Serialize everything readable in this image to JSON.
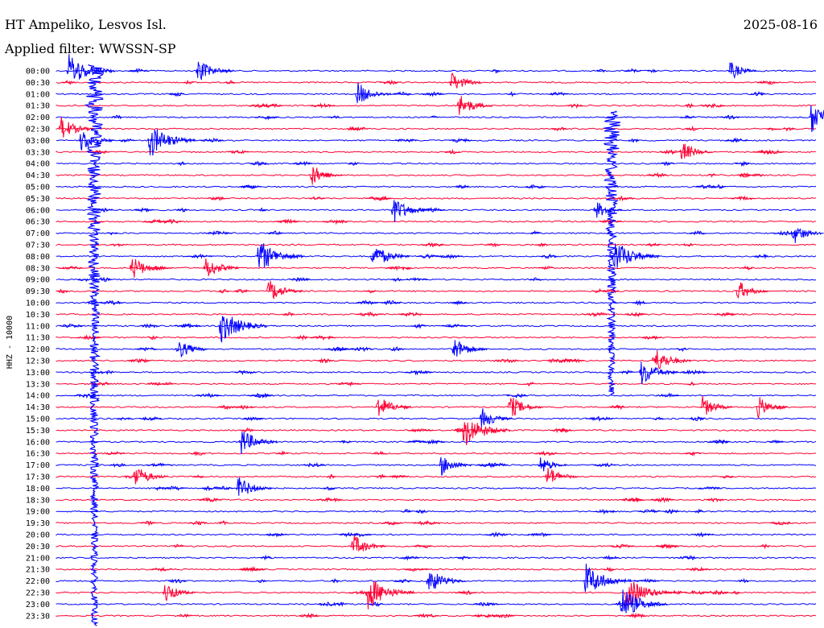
{
  "header": {
    "station": "HT Ampeliko, Lesvos Isl.",
    "filter": "Applied filter: WWSSN-SP",
    "date": "2025-08-16"
  },
  "chart_data": {
    "type": "line",
    "ylabel": "HHZ - 10000",
    "rows": [
      "00:00",
      "00:30",
      "01:00",
      "01:30",
      "02:00",
      "02:30",
      "03:00",
      "03:30",
      "04:00",
      "04:30",
      "05:00",
      "05:30",
      "06:00",
      "06:30",
      "07:00",
      "07:30",
      "08:00",
      "08:30",
      "09:00",
      "09:30",
      "10:00",
      "10:30",
      "11:00",
      "11:30",
      "12:00",
      "12:30",
      "13:00",
      "13:30",
      "14:00",
      "14:30",
      "15:00",
      "15:30",
      "16:00",
      "16:30",
      "17:00",
      "17:30",
      "18:00",
      "18:30",
      "19:00",
      "19:30",
      "20:00",
      "20:30",
      "21:00",
      "21:30",
      "22:00",
      "22:30",
      "23:00",
      "23:30"
    ],
    "row_duration_minutes": 30,
    "series_colors": [
      "#0000ff",
      "#ff0033"
    ],
    "events": [
      {
        "row": "00:00",
        "minute": 0.4,
        "amplitude": 1.0
      },
      {
        "row": "00:00",
        "minute": 5.5,
        "amplitude": 0.6
      },
      {
        "row": "00:00",
        "minute": 26.5,
        "amplitude": 0.4
      },
      {
        "row": "00:30",
        "minute": 15.5,
        "amplitude": 0.5
      },
      {
        "row": "01:00",
        "minute": 11.8,
        "amplitude": 0.6
      },
      {
        "row": "01:30",
        "minute": 15.8,
        "amplitude": 0.6
      },
      {
        "row": "02:00",
        "minute": 29.7,
        "amplitude": 1.0
      },
      {
        "row": "02:30",
        "minute": 0.1,
        "amplitude": 0.6
      },
      {
        "row": "03:00",
        "minute": 0.9,
        "amplitude": 0.6
      },
      {
        "row": "03:00",
        "minute": 3.6,
        "amplitude": 1.0
      },
      {
        "row": "03:30",
        "minute": 24.6,
        "amplitude": 0.5
      },
      {
        "row": "04:30",
        "minute": 10.0,
        "amplitude": 0.5
      },
      {
        "row": "06:00",
        "minute": 13.2,
        "amplitude": 0.7
      },
      {
        "row": "06:00",
        "minute": 21.2,
        "amplitude": 0.4
      },
      {
        "row": "07:00",
        "minute": 29.0,
        "amplitude": 0.5
      },
      {
        "row": "08:00",
        "minute": 7.9,
        "amplitude": 1.0
      },
      {
        "row": "08:00",
        "minute": 12.4,
        "amplitude": 0.7
      },
      {
        "row": "08:00",
        "minute": 21.9,
        "amplitude": 1.0
      },
      {
        "row": "08:30",
        "minute": 2.9,
        "amplitude": 0.6
      },
      {
        "row": "08:30",
        "minute": 5.8,
        "amplitude": 0.6
      },
      {
        "row": "09:30",
        "minute": 8.3,
        "amplitude": 0.6
      },
      {
        "row": "09:30",
        "minute": 26.8,
        "amplitude": 0.5
      },
      {
        "row": "11:00",
        "minute": 6.4,
        "amplitude": 1.0
      },
      {
        "row": "12:00",
        "minute": 4.7,
        "amplitude": 0.5
      },
      {
        "row": "12:00",
        "minute": 15.6,
        "amplitude": 0.6
      },
      {
        "row": "12:30",
        "minute": 23.5,
        "amplitude": 0.7
      },
      {
        "row": "13:00",
        "minute": 23.0,
        "amplitude": 0.7
      },
      {
        "row": "14:30",
        "minute": 12.6,
        "amplitude": 0.6
      },
      {
        "row": "14:30",
        "minute": 17.8,
        "amplitude": 0.6
      },
      {
        "row": "14:30",
        "minute": 25.4,
        "amplitude": 0.5
      },
      {
        "row": "14:30",
        "minute": 27.6,
        "amplitude": 0.5
      },
      {
        "row": "15:00",
        "minute": 16.7,
        "amplitude": 0.5
      },
      {
        "row": "15:30",
        "minute": 16.0,
        "amplitude": 1.0
      },
      {
        "row": "16:00",
        "minute": 7.2,
        "amplitude": 0.7
      },
      {
        "row": "17:00",
        "minute": 15.1,
        "amplitude": 0.5
      },
      {
        "row": "17:00",
        "minute": 19.0,
        "amplitude": 0.4
      },
      {
        "row": "17:30",
        "minute": 3.0,
        "amplitude": 0.6
      },
      {
        "row": "17:30",
        "minute": 19.3,
        "amplitude": 0.5
      },
      {
        "row": "18:00",
        "minute": 7.1,
        "amplitude": 0.6
      },
      {
        "row": "20:30",
        "minute": 11.6,
        "amplitude": 0.6
      },
      {
        "row": "22:00",
        "minute": 14.6,
        "amplitude": 0.7
      },
      {
        "row": "22:00",
        "minute": 20.8,
        "amplitude": 1.0
      },
      {
        "row": "22:30",
        "minute": 12.2,
        "amplitude": 1.0
      },
      {
        "row": "22:30",
        "minute": 4.2,
        "amplitude": 0.5
      },
      {
        "row": "22:30",
        "minute": 22.4,
        "amplitude": 1.0
      },
      {
        "row": "23:00",
        "minute": 22.2,
        "amplitude": 1.0
      }
    ],
    "large_events": [
      {
        "row": "00:00",
        "minute": 1.5,
        "amplitude": 1.0,
        "span_rows": 48
      },
      {
        "row": "02:00",
        "minute": 21.9,
        "amplitude": 1.0,
        "span_rows": 24
      }
    ]
  }
}
